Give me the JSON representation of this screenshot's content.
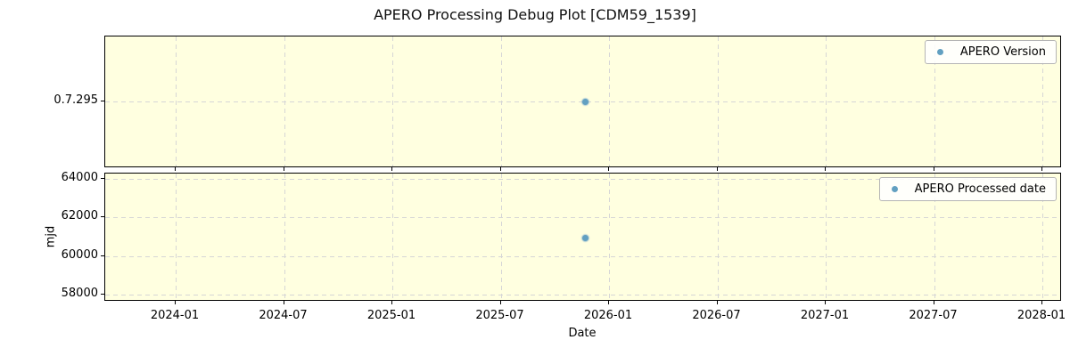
{
  "title": "APERO Processing Debug Plot [CDM59_1539]",
  "colors": {
    "plot_bg": "#FFFFE0",
    "marker": "#62A0C1",
    "grid": "#D6D6D6",
    "spine": "#000000",
    "legend_border": "#B5B5B5"
  },
  "xaxis": {
    "label": "Date",
    "ticks": [
      "2024-01",
      "2024-07",
      "2025-01",
      "2025-07",
      "2026-01",
      "2026-07",
      "2027-01",
      "2027-07",
      "2028-01"
    ]
  },
  "plots": [
    {
      "legend": "APERO Version",
      "ylabel": "",
      "yticks": [
        "0.7.295"
      ]
    },
    {
      "legend": "APERO Processed date",
      "ylabel": "mjd",
      "yticks": [
        "64000",
        "62000",
        "60000",
        "58000"
      ]
    }
  ],
  "chart_data": [
    {
      "type": "scatter",
      "title": "APERO Processing Debug Plot [CDM59_1539]",
      "xlabel": "Date",
      "x_range": [
        "2023-09",
        "2028-02"
      ],
      "x_ticks": [
        "2024-01",
        "2024-07",
        "2025-01",
        "2025-07",
        "2026-01",
        "2026-07",
        "2027-01",
        "2027-07",
        "2028-01"
      ],
      "y_ticks": [
        "0.7.295"
      ],
      "grid": true,
      "legend_position": "upper right",
      "series": [
        {
          "name": "APERO Version",
          "x": [
            "2025-11"
          ],
          "y": [
            "0.7.295"
          ]
        }
      ]
    },
    {
      "type": "scatter",
      "title": "",
      "xlabel": "Date",
      "ylabel": "mjd",
      "x_range": [
        "2023-09",
        "2028-02"
      ],
      "x_ticks": [
        "2024-01",
        "2024-07",
        "2025-01",
        "2025-07",
        "2026-01",
        "2026-07",
        "2027-01",
        "2027-07",
        "2028-01"
      ],
      "ylim": [
        57700,
        64300
      ],
      "y_ticks": [
        58000,
        60000,
        62000,
        64000
      ],
      "grid": true,
      "legend_position": "upper right",
      "series": [
        {
          "name": "APERO Processed date",
          "x": [
            "2025-11"
          ],
          "y": [
            61000
          ]
        }
      ]
    }
  ]
}
